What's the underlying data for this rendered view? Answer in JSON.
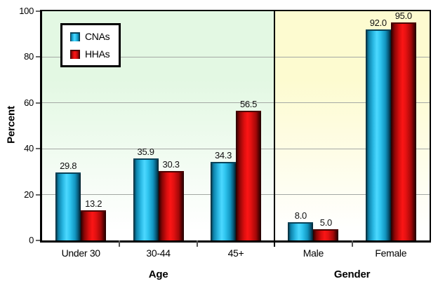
{
  "chart_data": {
    "type": "bar",
    "title": "",
    "ylabel": "Percent",
    "ylim": [
      0,
      100
    ],
    "yticks": [
      "0",
      "20",
      "40",
      "60",
      "80",
      "100"
    ],
    "grid": true,
    "legend_position": "top-left",
    "groups": [
      {
        "label": "Age",
        "bg_top": "#e3f8e3",
        "categories": [
          "Under 30",
          "30-44",
          "45+"
        ]
      },
      {
        "label": "Gender",
        "bg_top": "#fdfbd0",
        "categories": [
          "Male",
          "Female"
        ]
      }
    ],
    "series": [
      {
        "name": "CNAs",
        "color": "#2bc0ec",
        "values": [
          29.8,
          35.9,
          34.3,
          8.0,
          92.0
        ]
      },
      {
        "name": "HHAs",
        "color": "#ee1111",
        "values": [
          13.2,
          30.3,
          56.5,
          5.0,
          95.0
        ]
      }
    ],
    "colors": {
      "gridline": "#a4a8a4",
      "axis_border": "#000000",
      "plot_background_bottom": "#ffffff"
    }
  }
}
